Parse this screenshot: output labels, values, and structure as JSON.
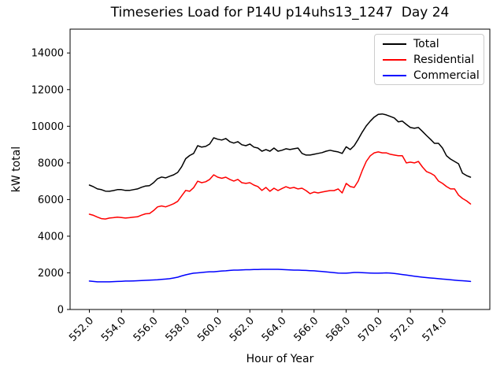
{
  "chart_data": {
    "type": "line",
    "title": "Timeseries Load for P14U p14uhs13_1247  Day 24",
    "xlabel": "Hour of Year",
    "ylabel": "kW total",
    "xlim": [
      550.8,
      576.95
    ],
    "ylim": [
      0,
      15300
    ],
    "xticks": [
      552,
      554,
      556,
      558,
      560,
      562,
      564,
      566,
      568,
      570,
      572,
      574
    ],
    "xtick_labels": [
      "552.0",
      "554.0",
      "556.0",
      "558.0",
      "560.0",
      "562.0",
      "564.0",
      "566.0",
      "568.0",
      "570.0",
      "572.0",
      "574.0"
    ],
    "yticks": [
      0,
      2000,
      4000,
      6000,
      8000,
      10000,
      12000,
      14000
    ],
    "ytick_labels": [
      "0",
      "2000",
      "4000",
      "6000",
      "8000",
      "10000",
      "12000",
      "14000"
    ],
    "grid": false,
    "legend_position": "upper right",
    "x": [
      552.0,
      552.25,
      552.5,
      552.75,
      553.0,
      553.25,
      553.5,
      553.75,
      554.0,
      554.25,
      554.5,
      554.75,
      555.0,
      555.25,
      555.5,
      555.75,
      556.0,
      556.25,
      556.5,
      556.75,
      557.0,
      557.25,
      557.5,
      557.75,
      558.0,
      558.25,
      558.5,
      558.75,
      559.0,
      559.25,
      559.5,
      559.75,
      560.0,
      560.25,
      560.5,
      560.75,
      561.0,
      561.25,
      561.5,
      561.75,
      562.0,
      562.25,
      562.5,
      562.75,
      563.0,
      563.25,
      563.5,
      563.75,
      564.0,
      564.25,
      564.5,
      564.75,
      565.0,
      565.25,
      565.5,
      565.75,
      566.0,
      566.25,
      566.5,
      566.75,
      567.0,
      567.25,
      567.5,
      567.75,
      568.0,
      568.25,
      568.5,
      568.75,
      569.0,
      569.25,
      569.5,
      569.75,
      570.0,
      570.25,
      570.5,
      570.75,
      571.0,
      571.25,
      571.5,
      571.75,
      572.0,
      572.25,
      572.5,
      572.75,
      573.0,
      573.25,
      573.5,
      573.75,
      574.0,
      574.25,
      574.5,
      574.75,
      575.0,
      575.25,
      575.5,
      575.75
    ],
    "series": [
      {
        "name": "Total",
        "color": "#000000",
        "values": [
          6790,
          6700,
          6580,
          6540,
          6460,
          6450,
          6490,
          6540,
          6540,
          6500,
          6500,
          6540,
          6580,
          6670,
          6740,
          6760,
          6920,
          7140,
          7230,
          7180,
          7270,
          7350,
          7480,
          7790,
          8230,
          8400,
          8520,
          8940,
          8860,
          8900,
          9030,
          9370,
          9290,
          9250,
          9330,
          9160,
          9080,
          9160,
          8990,
          8940,
          9030,
          8860,
          8810,
          8640,
          8730,
          8640,
          8810,
          8640,
          8690,
          8770,
          8730,
          8770,
          8810,
          8520,
          8430,
          8430,
          8470,
          8520,
          8560,
          8640,
          8690,
          8640,
          8600,
          8520,
          8880,
          8730,
          8940,
          9290,
          9680,
          10020,
          10280,
          10500,
          10650,
          10670,
          10620,
          10540,
          10450,
          10240,
          10280,
          10100,
          9930,
          9890,
          9930,
          9720,
          9500,
          9290,
          9070,
          9070,
          8810,
          8390,
          8210,
          8080,
          7950,
          7440,
          7310,
          7220
        ]
      },
      {
        "name": "Residential",
        "color": "#ff0000",
        "values": [
          5200,
          5140,
          5040,
          4960,
          4940,
          4990,
          5010,
          5040,
          5020,
          4990,
          5010,
          5040,
          5060,
          5150,
          5220,
          5240,
          5400,
          5600,
          5650,
          5600,
          5680,
          5770,
          5900,
          6200,
          6500,
          6450,
          6650,
          7000,
          6920,
          6970,
          7100,
          7350,
          7220,
          7160,
          7220,
          7100,
          7010,
          7100,
          6920,
          6880,
          6920,
          6790,
          6710,
          6500,
          6660,
          6450,
          6620,
          6490,
          6600,
          6700,
          6620,
          6660,
          6580,
          6620,
          6490,
          6320,
          6410,
          6360,
          6410,
          6450,
          6490,
          6490,
          6580,
          6360,
          6880,
          6710,
          6660,
          7010,
          7580,
          8080,
          8390,
          8550,
          8600,
          8550,
          8550,
          8470,
          8430,
          8390,
          8390,
          8000,
          8040,
          8000,
          8080,
          7780,
          7530,
          7440,
          7310,
          7010,
          6880,
          6710,
          6580,
          6580,
          6240,
          6060,
          5930,
          5760
        ]
      },
      {
        "name": "Commercial",
        "color": "#0000ff",
        "values": [
          1550,
          1530,
          1510,
          1510,
          1510,
          1510,
          1520,
          1530,
          1540,
          1550,
          1550,
          1560,
          1570,
          1580,
          1590,
          1600,
          1610,
          1620,
          1640,
          1660,
          1680,
          1720,
          1760,
          1830,
          1890,
          1940,
          1980,
          2000,
          2020,
          2040,
          2060,
          2060,
          2080,
          2100,
          2110,
          2130,
          2150,
          2150,
          2160,
          2170,
          2170,
          2180,
          2180,
          2190,
          2190,
          2190,
          2190,
          2190,
          2180,
          2170,
          2160,
          2150,
          2150,
          2140,
          2130,
          2120,
          2110,
          2090,
          2070,
          2050,
          2030,
          2010,
          1990,
          1980,
          1980,
          2000,
          2020,
          2020,
          2010,
          2000,
          1990,
          1980,
          1980,
          1990,
          2000,
          1990,
          1970,
          1940,
          1910,
          1880,
          1850,
          1820,
          1790,
          1760,
          1740,
          1720,
          1700,
          1680,
          1660,
          1640,
          1620,
          1600,
          1580,
          1570,
          1550,
          1530
        ]
      }
    ]
  }
}
